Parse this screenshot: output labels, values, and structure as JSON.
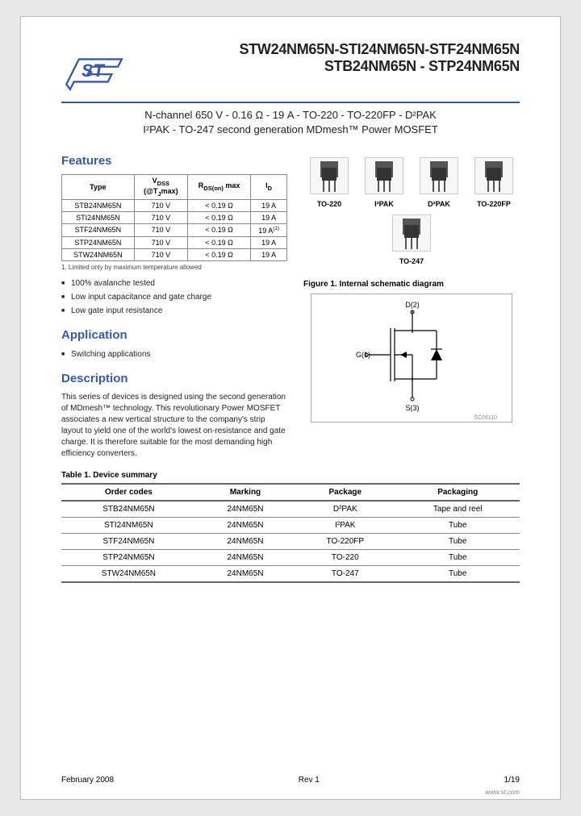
{
  "header": {
    "title_line1": "STW24NM65N-STI24NM65N-STF24NM65N",
    "title_line2": "STB24NM65N - STP24NM65N",
    "subtitle_line1": "N-channel 650 V - 0.16 Ω - 19 A - TO-220 - TO-220FP - D²PAK",
    "subtitle_line2": "I²PAK - TO-247 second generation MDmesh™ Power MOSFET"
  },
  "features": {
    "heading": "Features",
    "table": {
      "headers": [
        "Type",
        "V_DSS (@T_Jmax)",
        "R_DS(on) max",
        "I_D"
      ],
      "rows": [
        [
          "STB24NM65N",
          "710 V",
          "< 0.19 Ω",
          "19 A"
        ],
        [
          "STI24NM65N",
          "710 V",
          "< 0.19 Ω",
          "19 A"
        ],
        [
          "STF24NM65N",
          "710 V",
          "< 0.19 Ω",
          "19 A(1)"
        ],
        [
          "STP24NM65N",
          "710 V",
          "< 0.19 Ω",
          "19 A"
        ],
        [
          "STW24NM65N",
          "710 V",
          "< 0.19 Ω",
          "19 A"
        ]
      ]
    },
    "footnote": "1.   Limited only by maximum temperature allowed",
    "bullets": [
      "100% avalanche tested",
      "Low input capacitance and gate charge",
      "Low gate input resistance"
    ]
  },
  "application": {
    "heading": "Application",
    "bullets": [
      "Switching applications"
    ]
  },
  "description": {
    "heading": "Description",
    "text": "This series of devices is designed using the second generation of MDmesh™ technology. This revolutionary Power MOSFET associates a new vertical structure to the company's strip layout to yield one of the world's lowest on-resistance and gate charge. It is therefore suitable for the most demanding high efficiency converters."
  },
  "packages": {
    "items": [
      {
        "label": "TO-220"
      },
      {
        "label": "I²PAK"
      },
      {
        "label": "D²PAK"
      },
      {
        "label": "TO-220FP"
      },
      {
        "label": "TO-247"
      }
    ]
  },
  "figure1": {
    "caption": "Figure 1.    Internal schematic diagram",
    "labels": {
      "drain": "D(2)",
      "gate": "G(1)",
      "source": "S(3)",
      "code": "SC06110"
    }
  },
  "table1": {
    "caption": "Table 1.    Device summary",
    "headers": [
      "Order codes",
      "Marking",
      "Package",
      "Packaging"
    ],
    "rows": [
      [
        "STB24NM65N",
        "24NM65N",
        "D²PAK",
        "Tape and reel"
      ],
      [
        "STI24NM65N",
        "24NM65N",
        "I²PAK",
        "Tube"
      ],
      [
        "STF24NM65N",
        "24NM65N",
        "TO-220FP",
        "Tube"
      ],
      [
        "STP24NM65N",
        "24NM65N",
        "TO-220",
        "Tube"
      ],
      [
        "STW24NM65N",
        "24NM65N",
        "TO-247",
        "Tube"
      ]
    ]
  },
  "footer": {
    "date": "February 2008",
    "rev": "Rev 1",
    "page": "1/19",
    "url": "www.st.com"
  },
  "colors": {
    "accent": "#3858a8",
    "border": "#888888",
    "text": "#222222"
  }
}
